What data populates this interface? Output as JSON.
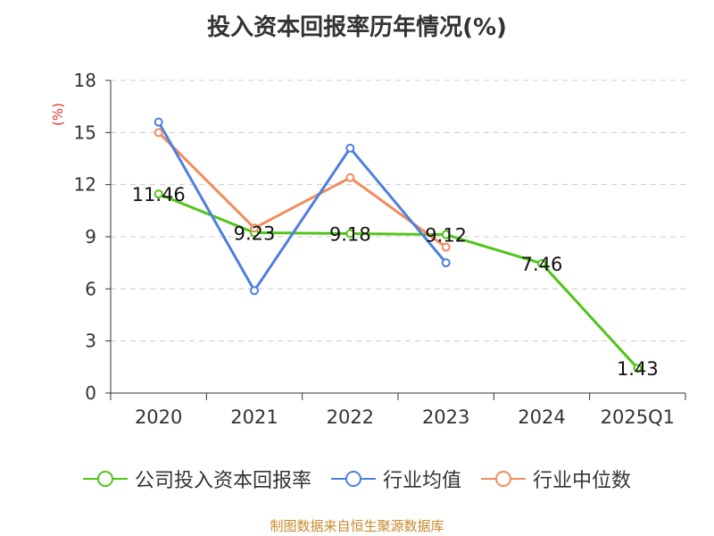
{
  "chart_data": {
    "type": "line",
    "title": "投入资本回报率历年情况(%)",
    "ylabel": "(%)",
    "categories": [
      "2020",
      "2021",
      "2022",
      "2023",
      "2024",
      "2025Q1"
    ],
    "ylim": [
      0,
      18
    ],
    "yticks": [
      0,
      3,
      6,
      9,
      12,
      15,
      18
    ],
    "grid": true,
    "legend_position": "bottom",
    "series": [
      {
        "name": "公司投入资本回报率",
        "color": "#52c41a",
        "values": [
          11.46,
          9.23,
          9.18,
          9.12,
          7.46,
          1.43
        ],
        "labels": [
          "11.46",
          "9.23",
          "9.18",
          "9.12",
          "7.46",
          "1.43"
        ]
      },
      {
        "name": "行业均值",
        "color": "#4e7fde",
        "values": [
          15.6,
          5.9,
          14.1,
          7.5,
          null,
          null
        ]
      },
      {
        "name": "行业中位数",
        "color": "#f28c5b",
        "values": [
          15.0,
          9.5,
          12.4,
          8.4,
          null,
          null
        ]
      }
    ]
  },
  "source_text": "制图数据来自恒生聚源数据库"
}
